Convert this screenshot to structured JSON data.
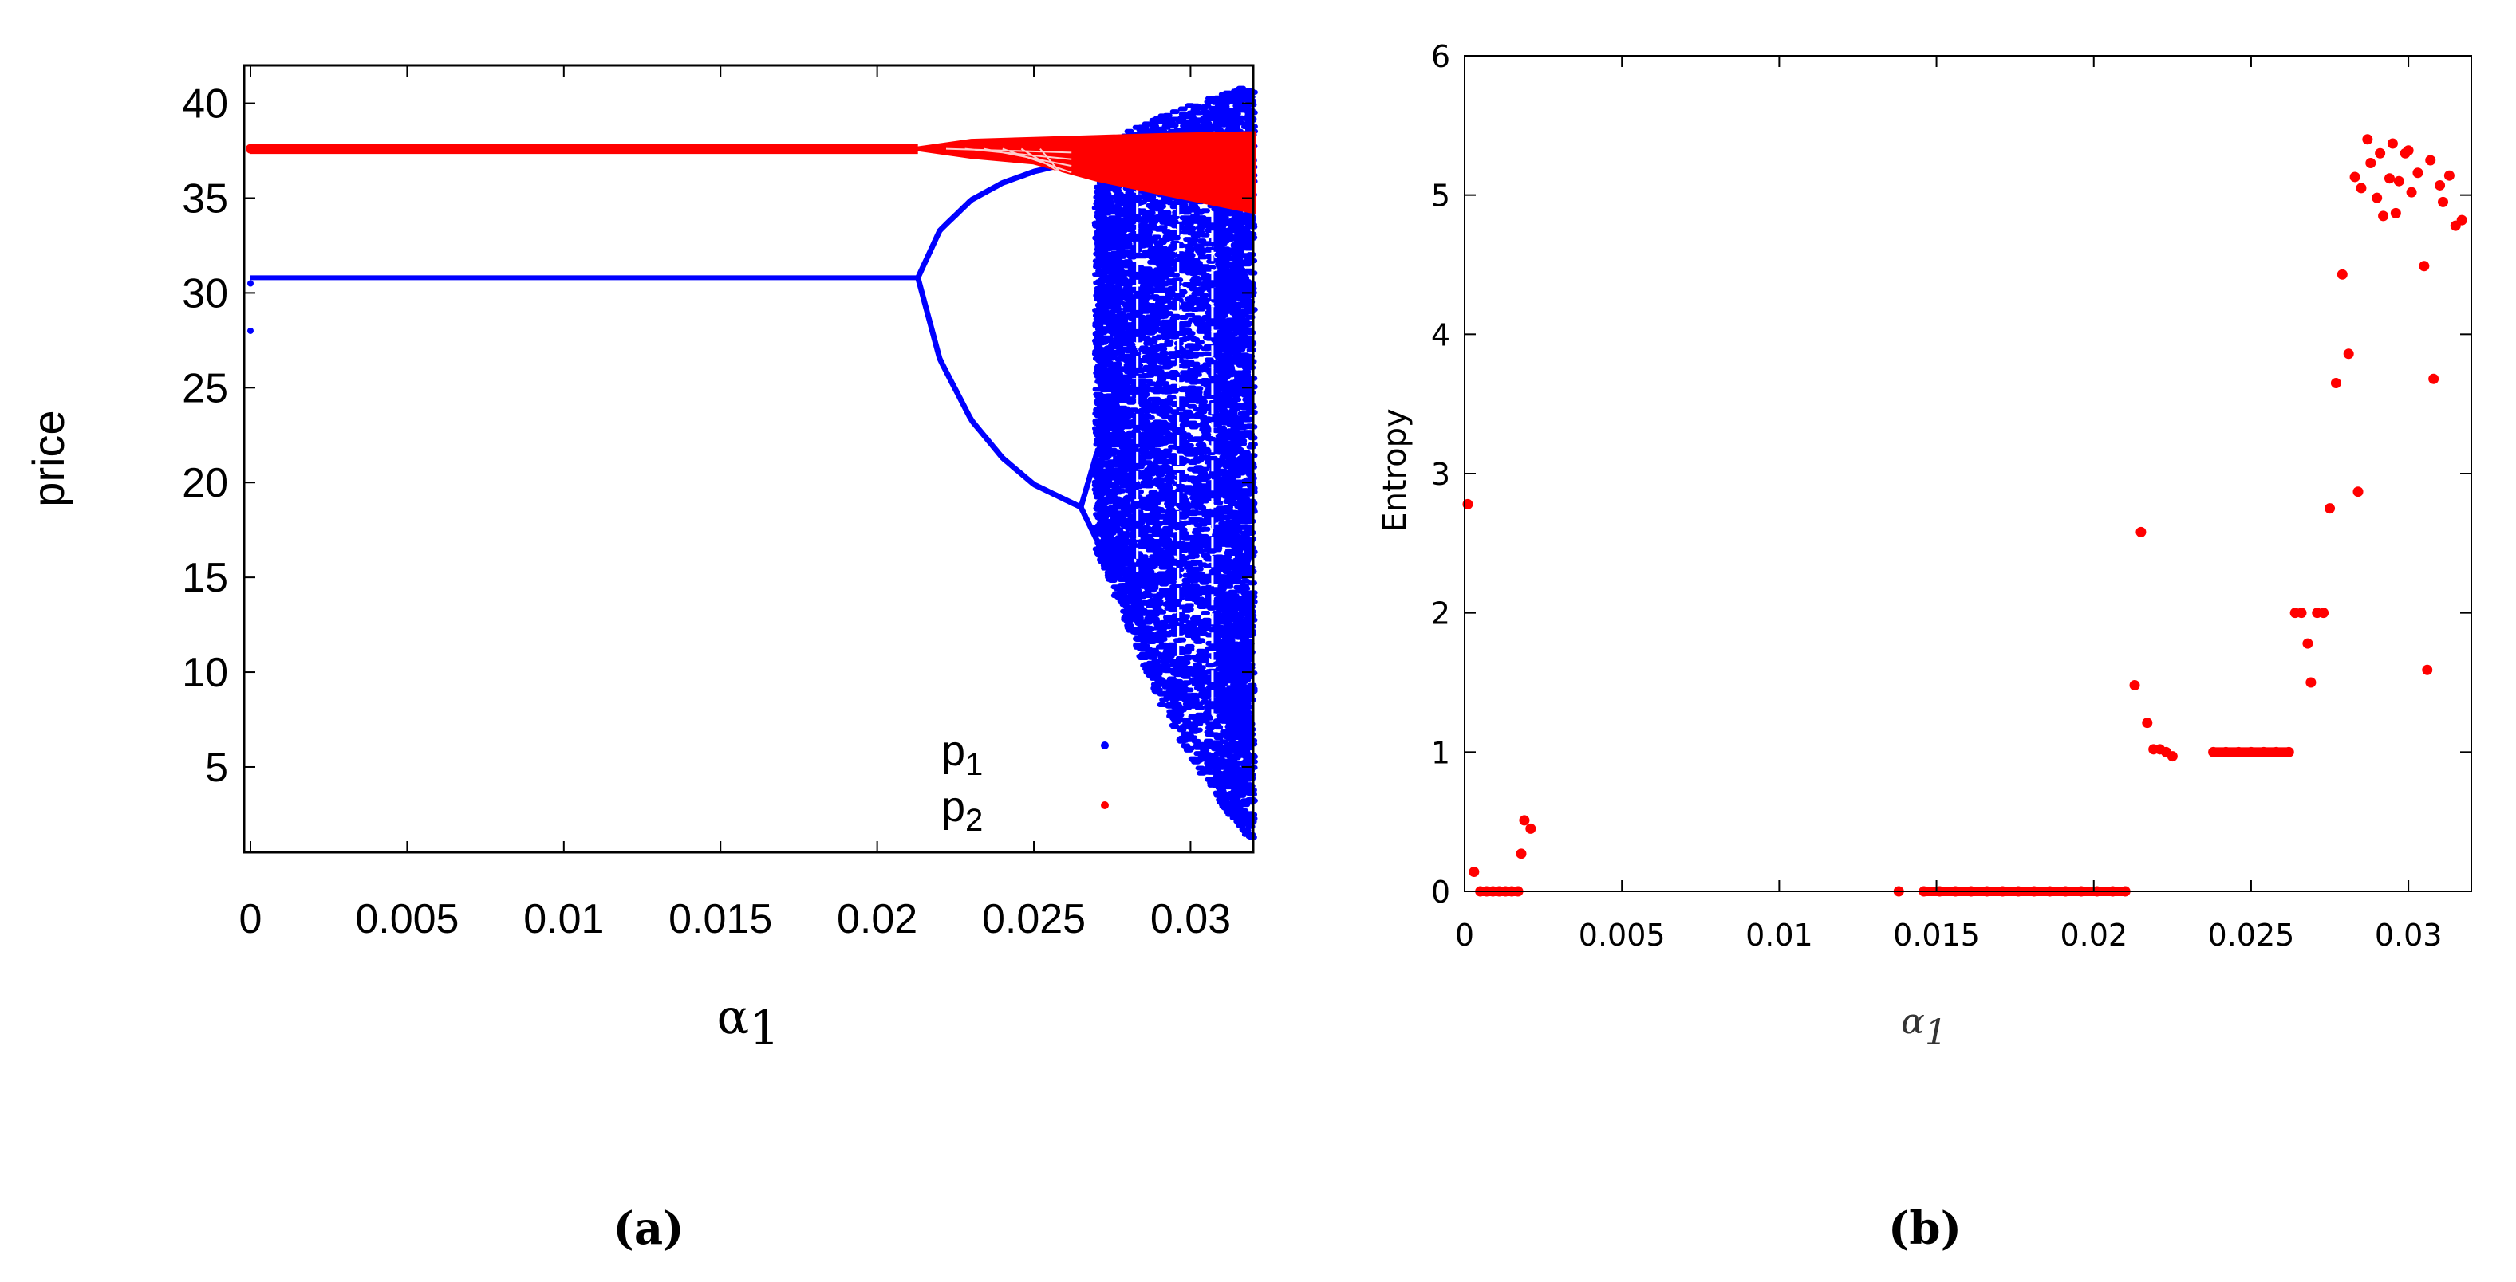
{
  "chart_data": [
    {
      "panel_label": "(a)",
      "type": "scatter",
      "title": "",
      "ylabel": "price",
      "xlabel_symbol": "α",
      "xlabel_sub": "1",
      "xlim": [
        0,
        0.032
      ],
      "ylim": [
        0.5,
        42
      ],
      "x_ticks": [
        0,
        0.005,
        0.01,
        0.015,
        0.02,
        0.025,
        0.03
      ],
      "x_tick_labels": [
        "0",
        "0.005",
        "0.01",
        "0.015",
        "0.02",
        "0.025",
        "0.03"
      ],
      "y_ticks": [
        5,
        10,
        15,
        20,
        25,
        30,
        35,
        40
      ],
      "y_tick_labels": [
        "5",
        "10",
        "15",
        "20",
        "25",
        "30",
        "35",
        "40"
      ],
      "legend": [
        {
          "name": "p",
          "sub": "1",
          "color": "#0000ff"
        },
        {
          "name": "p",
          "sub": "2",
          "color": "#ff0000"
        }
      ],
      "legend_position": "bottom-right",
      "series": [
        {
          "name": "p1",
          "color": "#0000ff",
          "description": "bifurcation diagram of p1 vs alpha1",
          "fixed_point": {
            "x_range": [
              0,
              0.0213
            ],
            "y": 30.8
          },
          "initial_points": [
            {
              "x": 0,
              "y": 30.5
            },
            {
              "x": 0,
              "y": 28.0
            }
          ],
          "period2_upper": {
            "x": [
              0.0213,
              0.022,
              0.023,
              0.024,
              0.025,
              0.026,
              0.0265
            ],
            "y": [
              30.8,
              33.3,
              34.9,
              35.8,
              36.4,
              36.8,
              37.0
            ]
          },
          "period2_lower": {
            "x": [
              0.0213,
              0.022,
              0.023,
              0.024,
              0.025,
              0.026,
              0.0265
            ],
            "y": [
              30.8,
              26.5,
              23.3,
              21.3,
              19.9,
              19.1,
              18.7
            ]
          },
          "period4_split": {
            "x": [
              0.0265,
              0.027,
              0.0273
            ],
            "upper": [
              18.7,
              21.5,
              22.5
            ],
            "lower": [
              18.7,
              17.0,
              16.2
            ]
          },
          "chaos_envelope": {
            "x": [
              0.027,
              0.028,
              0.029,
              0.03,
              0.031,
              0.032
            ],
            "top": [
              37.5,
              38.5,
              39.3,
              39.9,
              40.5,
              41.0
            ],
            "bottom": [
              16.5,
              12.5,
              8.5,
              5.5,
              3.0,
              1.0
            ]
          }
        },
        {
          "name": "p2",
          "color": "#ff0000",
          "description": "bifurcation diagram of p2 vs alpha1",
          "fixed_point": {
            "x_range": [
              0,
              0.0213
            ],
            "y": 37.6
          },
          "band": {
            "x": [
              0.0213,
              0.023,
              0.025,
              0.027,
              0.029,
              0.032
            ],
            "top": [
              37.6,
              38.0,
              38.1,
              38.2,
              38.3,
              38.4
            ],
            "bottom": [
              37.6,
              37.2,
              36.9,
              36.0,
              35.3,
              34.3
            ]
          }
        }
      ]
    },
    {
      "panel_label": "(b)",
      "type": "scatter",
      "title": "",
      "ylabel": "Entropy",
      "xlabel_symbol": "α",
      "xlabel_sub": "1",
      "xlim": [
        0,
        0.032
      ],
      "ylim": [
        0,
        6
      ],
      "x_ticks": [
        0,
        0.005,
        0.01,
        0.015,
        0.02,
        0.025,
        0.03
      ],
      "x_tick_labels": [
        "0",
        "0.005",
        "0.01",
        "0.015",
        "0.02",
        "0.025",
        "0.03"
      ],
      "y_ticks": [
        0,
        1,
        2,
        3,
        4,
        5,
        6
      ],
      "y_tick_labels": [
        "0",
        "1",
        "2",
        "3",
        "4",
        "5",
        "6"
      ],
      "series": [
        {
          "name": "Entropy",
          "color": "#ff0000",
          "points": [
            [
              0.0001,
              2.78
            ],
            [
              0.0003,
              0.14
            ],
            [
              0.0005,
              0.0
            ],
            [
              0.0007,
              0.0
            ],
            [
              0.0009,
              0.0
            ],
            [
              0.0011,
              0.0
            ],
            [
              0.0013,
              0.0
            ],
            [
              0.0015,
              0.0
            ],
            [
              0.0017,
              0.0
            ],
            [
              0.0018,
              0.27
            ],
            [
              0.0019,
              0.51
            ],
            [
              0.0021,
              0.45
            ],
            [
              0.0138,
              0.0
            ],
            [
              0.0146,
              0.0
            ],
            [
              0.0151,
              0.0
            ],
            [
              0.0156,
              0.0
            ],
            [
              0.0161,
              0.0
            ],
            [
              0.0166,
              0.0
            ],
            [
              0.0171,
              0.0
            ],
            [
              0.0176,
              0.0
            ],
            [
              0.0181,
              0.0
            ],
            [
              0.0186,
              0.0
            ],
            [
              0.0191,
              0.0
            ],
            [
              0.0196,
              0.0
            ],
            [
              0.0201,
              0.0
            ],
            [
              0.0206,
              0.0
            ],
            [
              0.021,
              0.0
            ],
            [
              0.0213,
              1.48
            ],
            [
              0.0215,
              2.58
            ],
            [
              0.0217,
              1.21
            ],
            [
              0.0219,
              1.02
            ],
            [
              0.0221,
              1.02
            ],
            [
              0.0223,
              1.0
            ],
            [
              0.0225,
              0.97
            ],
            [
              0.0238,
              1.0
            ],
            [
              0.0242,
              1.0
            ],
            [
              0.0246,
              1.0
            ],
            [
              0.025,
              1.0
            ],
            [
              0.0254,
              1.0
            ],
            [
              0.0258,
              1.0
            ],
            [
              0.0262,
              1.0
            ],
            [
              0.0264,
              2.0
            ],
            [
              0.0266,
              2.0
            ],
            [
              0.0268,
              1.78
            ],
            [
              0.0269,
              1.5
            ],
            [
              0.0271,
              2.0
            ],
            [
              0.0273,
              2.0
            ],
            [
              0.0275,
              2.75
            ],
            [
              0.0277,
              3.65
            ],
            [
              0.0279,
              4.43
            ],
            [
              0.0281,
              3.86
            ],
            [
              0.0283,
              5.13
            ],
            [
              0.0284,
              2.87
            ],
            [
              0.0285,
              5.05
            ],
            [
              0.0287,
              5.4
            ],
            [
              0.0288,
              5.23
            ],
            [
              0.029,
              4.98
            ],
            [
              0.0291,
              5.3
            ],
            [
              0.0292,
              4.85
            ],
            [
              0.0294,
              5.12
            ],
            [
              0.0295,
              5.37
            ],
            [
              0.0296,
              4.87
            ],
            [
              0.0297,
              5.1
            ],
            [
              0.0299,
              5.3
            ],
            [
              0.03,
              5.32
            ],
            [
              0.0301,
              5.02
            ],
            [
              0.0303,
              5.16
            ],
            [
              0.0305,
              4.49
            ],
            [
              0.0306,
              1.59
            ],
            [
              0.0307,
              5.25
            ],
            [
              0.0308,
              3.68
            ],
            [
              0.031,
              5.07
            ],
            [
              0.0311,
              4.95
            ],
            [
              0.0313,
              5.14
            ],
            [
              0.0315,
              4.78
            ],
            [
              0.0317,
              4.82
            ]
          ]
        }
      ]
    }
  ]
}
